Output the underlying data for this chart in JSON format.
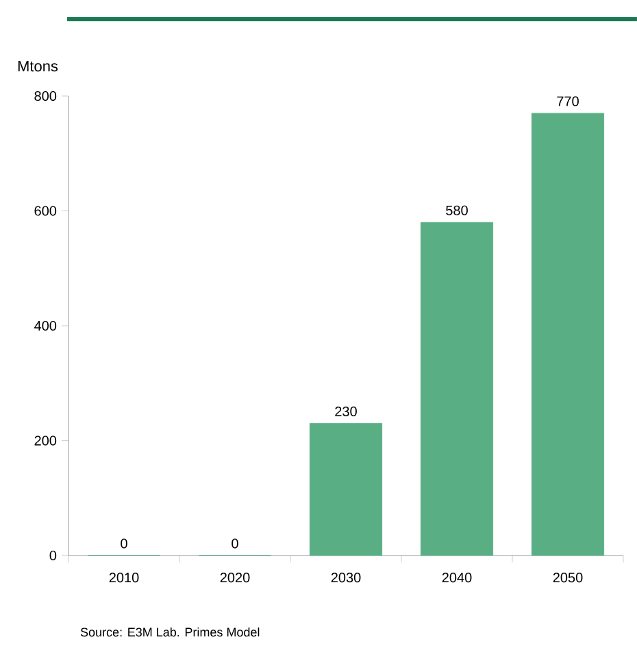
{
  "chart_data": {
    "type": "bar",
    "ylabel": "Mtons",
    "categories": [
      "2010",
      "2020",
      "2030",
      "2040",
      "2050"
    ],
    "values": [
      0,
      0,
      230,
      580,
      770
    ],
    "color": "#5aae84",
    "ylim": [
      0,
      800
    ],
    "yticks": [
      0,
      200,
      400,
      600,
      800
    ],
    "data_labels": true,
    "grid": false,
    "annotations": [
      "Source: E3M Lab. Primes Model"
    ]
  }
}
